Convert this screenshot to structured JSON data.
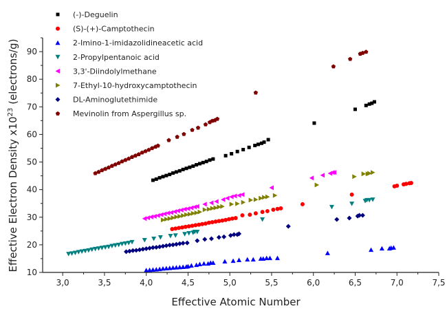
{
  "chart_data": {
    "type": "scatter",
    "title": "",
    "xlabel": "Effective Atomic Number",
    "ylabel": {
      "main": "Effective Electron Density x10",
      "sup": "23",
      "unit": " (electrons/g)"
    },
    "xlim": [
      2.76,
      7.5
    ],
    "ylim": [
      10,
      95
    ],
    "xticks": [
      3.0,
      3.5,
      4.0,
      4.5,
      5.0,
      5.5,
      6.0,
      6.5,
      7.0,
      7.5
    ],
    "xtick_labels": [
      "3,0",
      "3,5",
      "4,0",
      "4,5",
      "5,0",
      "5,5",
      "6,0",
      "6,5",
      "7,0",
      "7,5"
    ],
    "yticks": [
      10,
      20,
      30,
      40,
      50,
      60,
      70,
      80,
      90
    ],
    "ytick_labels": [
      "10",
      "20",
      "30",
      "40",
      "50",
      "60",
      "70",
      "80",
      "90"
    ],
    "grid": false,
    "legend_position": "top-left",
    "series": [
      {
        "name": "(-)-Deguelin",
        "marker": "square",
        "color": "#000000",
        "points": [
          [
            4.08,
            43.4
          ],
          [
            4.12,
            43.8
          ],
          [
            4.16,
            44.3
          ],
          [
            4.2,
            44.7
          ],
          [
            4.24,
            45.1
          ],
          [
            4.28,
            45.5
          ],
          [
            4.32,
            46.0
          ],
          [
            4.36,
            46.4
          ],
          [
            4.4,
            46.8
          ],
          [
            4.44,
            47.3
          ],
          [
            4.48,
            47.7
          ],
          [
            4.52,
            48.1
          ],
          [
            4.56,
            48.5
          ],
          [
            4.6,
            49.0
          ],
          [
            4.64,
            49.4
          ],
          [
            4.68,
            49.8
          ],
          [
            4.72,
            50.2
          ],
          [
            4.76,
            50.7
          ],
          [
            4.8,
            51.1
          ],
          [
            4.95,
            52.3
          ],
          [
            5.02,
            53.0
          ],
          [
            5.09,
            53.8
          ],
          [
            5.16,
            54.5
          ],
          [
            5.23,
            55.3
          ],
          [
            5.3,
            56.0
          ],
          [
            5.34,
            56.4
          ],
          [
            5.38,
            56.8
          ],
          [
            5.41,
            57.2
          ],
          [
            5.46,
            58.1
          ],
          [
            6.01,
            64.1
          ],
          [
            6.5,
            69.1
          ],
          [
            6.63,
            70.5
          ],
          [
            6.67,
            71.0
          ],
          [
            6.7,
            71.3
          ],
          [
            6.73,
            71.8
          ]
        ]
      },
      {
        "name": "(S)-(+)-Camptothecin",
        "marker": "circle",
        "color": "#ff0000",
        "points": [
          [
            4.31,
            25.7
          ],
          [
            4.35,
            25.9
          ],
          [
            4.39,
            26.1
          ],
          [
            4.43,
            26.3
          ],
          [
            4.47,
            26.5
          ],
          [
            4.51,
            26.7
          ],
          [
            4.55,
            26.9
          ],
          [
            4.59,
            27.1
          ],
          [
            4.63,
            27.3
          ],
          [
            4.67,
            27.5
          ],
          [
            4.71,
            27.7
          ],
          [
            4.75,
            28.0
          ],
          [
            4.79,
            28.2
          ],
          [
            4.83,
            28.4
          ],
          [
            4.87,
            28.6
          ],
          [
            4.91,
            28.8
          ],
          [
            4.95,
            29.0
          ],
          [
            4.99,
            29.3
          ],
          [
            5.03,
            29.5
          ],
          [
            5.07,
            29.7
          ],
          [
            5.15,
            30.7
          ],
          [
            5.24,
            30.9
          ],
          [
            5.31,
            31.4
          ],
          [
            5.39,
            31.9
          ],
          [
            5.45,
            32.2
          ],
          [
            5.52,
            32.7
          ],
          [
            5.57,
            33.0
          ],
          [
            5.61,
            33.2
          ],
          [
            5.87,
            34.7
          ],
          [
            6.46,
            38.2
          ],
          [
            6.97,
            41.2
          ],
          [
            7.0,
            41.4
          ],
          [
            7.08,
            41.9
          ],
          [
            7.11,
            42.1
          ],
          [
            7.15,
            42.3
          ],
          [
            7.17,
            42.4
          ]
        ]
      },
      {
        "name": "2-Imino-1-imidazolidineacetic acid",
        "marker": "triangle-up",
        "color": "#0000ff",
        "points": [
          [
            4.0,
            10.8
          ],
          [
            4.04,
            10.9
          ],
          [
            4.08,
            11.0
          ],
          [
            4.12,
            11.1
          ],
          [
            4.16,
            11.2
          ],
          [
            4.2,
            11.4
          ],
          [
            4.24,
            11.5
          ],
          [
            4.28,
            11.6
          ],
          [
            4.32,
            11.7
          ],
          [
            4.36,
            11.8
          ],
          [
            4.4,
            11.9
          ],
          [
            4.44,
            12.0
          ],
          [
            4.48,
            12.1
          ],
          [
            4.5,
            12.2
          ],
          [
            4.54,
            12.5
          ],
          [
            4.6,
            12.7
          ],
          [
            4.64,
            13.0
          ],
          [
            4.69,
            13.2
          ],
          [
            4.74,
            13.2
          ],
          [
            4.77,
            13.5
          ],
          [
            4.8,
            13.5
          ],
          [
            4.94,
            14.0
          ],
          [
            5.04,
            14.2
          ],
          [
            5.11,
            14.5
          ],
          [
            5.21,
            14.7
          ],
          [
            5.28,
            14.7
          ],
          [
            5.37,
            15.0
          ],
          [
            5.4,
            15.0
          ],
          [
            5.44,
            15.2
          ],
          [
            5.48,
            15.2
          ],
          [
            5.57,
            15.2
          ],
          [
            6.17,
            17.0
          ],
          [
            6.69,
            18.2
          ],
          [
            6.82,
            18.7
          ],
          [
            6.91,
            18.7
          ],
          [
            6.93,
            18.9
          ],
          [
            6.96,
            19.0
          ]
        ]
      },
      {
        "name": "2-Propylpentanoic acid",
        "marker": "triangle-down",
        "color": "#008080",
        "points": [
          [
            3.07,
            16.7
          ],
          [
            3.11,
            16.9
          ],
          [
            3.15,
            17.1
          ],
          [
            3.19,
            17.4
          ],
          [
            3.23,
            17.6
          ],
          [
            3.27,
            17.8
          ],
          [
            3.31,
            18.0
          ],
          [
            3.35,
            18.3
          ],
          [
            3.39,
            18.5
          ],
          [
            3.43,
            18.7
          ],
          [
            3.47,
            18.9
          ],
          [
            3.51,
            19.1
          ],
          [
            3.55,
            19.3
          ],
          [
            3.59,
            19.6
          ],
          [
            3.63,
            19.8
          ],
          [
            3.67,
            20.0
          ],
          [
            3.71,
            20.3
          ],
          [
            3.75,
            20.5
          ],
          [
            3.79,
            20.7
          ],
          [
            3.83,
            21.0
          ],
          [
            3.98,
            21.7
          ],
          [
            4.09,
            22.2
          ],
          [
            4.17,
            22.7
          ],
          [
            4.29,
            23.2
          ],
          [
            4.35,
            23.4
          ],
          [
            4.46,
            23.9
          ],
          [
            4.51,
            24.2
          ],
          [
            4.56,
            24.4
          ],
          [
            4.58,
            24.7
          ],
          [
            4.61,
            24.7
          ],
          [
            5.39,
            29.2
          ],
          [
            6.22,
            33.7
          ],
          [
            6.46,
            34.9
          ],
          [
            6.62,
            35.9
          ],
          [
            6.64,
            36.2
          ],
          [
            6.67,
            36.2
          ],
          [
            6.71,
            36.4
          ]
        ]
      },
      {
        "name": "3,3'-Diindolylmethane",
        "marker": "triangle-left",
        "color": "#ff00ff",
        "points": [
          [
            3.98,
            29.5
          ],
          [
            4.02,
            29.8
          ],
          [
            4.06,
            30.1
          ],
          [
            4.1,
            30.3
          ],
          [
            4.14,
            30.6
          ],
          [
            4.18,
            30.9
          ],
          [
            4.22,
            31.2
          ],
          [
            4.26,
            31.5
          ],
          [
            4.3,
            31.7
          ],
          [
            4.34,
            32.0
          ],
          [
            4.38,
            32.3
          ],
          [
            4.42,
            32.6
          ],
          [
            4.46,
            32.9
          ],
          [
            4.5,
            33.1
          ],
          [
            4.54,
            33.4
          ],
          [
            4.58,
            33.7
          ],
          [
            4.61,
            33.9
          ],
          [
            4.7,
            34.7
          ],
          [
            4.78,
            35.2
          ],
          [
            4.84,
            35.7
          ],
          [
            4.92,
            36.4
          ],
          [
            4.97,
            36.9
          ],
          [
            5.02,
            37.4
          ],
          [
            5.06,
            37.7
          ],
          [
            5.11,
            37.9
          ],
          [
            5.15,
            38.2
          ],
          [
            5.5,
            40.7
          ],
          [
            5.98,
            44.2
          ],
          [
            6.11,
            45.2
          ],
          [
            6.2,
            45.9
          ],
          [
            6.23,
            46.2
          ],
          [
            6.25,
            46.2
          ]
        ]
      },
      {
        "name": "7-Ethyl-10-hydroxycamptothecin",
        "marker": "triangle-right",
        "color": "#808000",
        "points": [
          [
            4.2,
            29.0
          ],
          [
            4.24,
            29.3
          ],
          [
            4.28,
            29.5
          ],
          [
            4.32,
            29.8
          ],
          [
            4.36,
            30.1
          ],
          [
            4.4,
            30.3
          ],
          [
            4.44,
            30.6
          ],
          [
            4.48,
            30.9
          ],
          [
            4.52,
            31.1
          ],
          [
            4.56,
            31.4
          ],
          [
            4.6,
            31.6
          ],
          [
            4.64,
            31.9
          ],
          [
            4.7,
            32.7
          ],
          [
            4.75,
            32.9
          ],
          [
            4.79,
            33.2
          ],
          [
            4.83,
            33.4
          ],
          [
            4.87,
            33.7
          ],
          [
            4.91,
            33.9
          ],
          [
            5.02,
            34.7
          ],
          [
            5.09,
            34.9
          ],
          [
            5.16,
            35.4
          ],
          [
            5.25,
            36.2
          ],
          [
            5.31,
            36.4
          ],
          [
            5.37,
            36.9
          ],
          [
            5.41,
            37.2
          ],
          [
            5.45,
            37.4
          ],
          [
            5.54,
            37.9
          ],
          [
            6.04,
            41.7
          ],
          [
            6.49,
            44.7
          ],
          [
            6.6,
            45.7
          ],
          [
            6.65,
            45.7
          ],
          [
            6.67,
            45.9
          ],
          [
            6.71,
            46.2
          ]
        ]
      },
      {
        "name": "DL-Aminoglutethimide",
        "marker": "diamond",
        "color": "#000080",
        "points": [
          [
            3.76,
            17.5
          ],
          [
            3.8,
            17.7
          ],
          [
            3.84,
            17.9
          ],
          [
            3.88,
            18.0
          ],
          [
            3.92,
            18.2
          ],
          [
            3.96,
            18.4
          ],
          [
            4.0,
            18.6
          ],
          [
            4.04,
            18.8
          ],
          [
            4.08,
            19.0
          ],
          [
            4.12,
            19.1
          ],
          [
            4.16,
            19.3
          ],
          [
            4.2,
            19.5
          ],
          [
            4.24,
            19.7
          ],
          [
            4.28,
            19.9
          ],
          [
            4.32,
            20.0
          ],
          [
            4.36,
            20.2
          ],
          [
            4.4,
            20.4
          ],
          [
            4.44,
            20.6
          ],
          [
            4.49,
            20.7
          ],
          [
            4.61,
            21.5
          ],
          [
            4.7,
            22.0
          ],
          [
            4.78,
            22.2
          ],
          [
            4.87,
            22.7
          ],
          [
            4.93,
            22.9
          ],
          [
            5.01,
            23.4
          ],
          [
            5.05,
            23.7
          ],
          [
            5.09,
            23.7
          ],
          [
            5.11,
            24.0
          ],
          [
            5.7,
            26.7
          ],
          [
            6.28,
            29.2
          ],
          [
            6.43,
            29.7
          ],
          [
            6.53,
            30.4
          ],
          [
            6.55,
            30.7
          ],
          [
            6.59,
            30.7
          ]
        ]
      },
      {
        "name": "Mevinolin from Aspergillus sp.",
        "marker": "pentagon",
        "color": "#800000",
        "points": [
          [
            3.39,
            45.9
          ],
          [
            3.43,
            46.4
          ],
          [
            3.47,
            47.0
          ],
          [
            3.51,
            47.5
          ],
          [
            3.55,
            48.0
          ],
          [
            3.59,
            48.6
          ],
          [
            3.63,
            49.1
          ],
          [
            3.67,
            49.6
          ],
          [
            3.71,
            50.2
          ],
          [
            3.75,
            50.7
          ],
          [
            3.79,
            51.2
          ],
          [
            3.83,
            51.8
          ],
          [
            3.87,
            52.3
          ],
          [
            3.91,
            52.8
          ],
          [
            3.95,
            53.4
          ],
          [
            3.99,
            53.9
          ],
          [
            4.03,
            54.4
          ],
          [
            4.07,
            55.0
          ],
          [
            4.11,
            55.5
          ],
          [
            4.14,
            55.9
          ],
          [
            4.27,
            57.9
          ],
          [
            4.37,
            59.1
          ],
          [
            4.45,
            60.1
          ],
          [
            4.55,
            61.6
          ],
          [
            4.62,
            62.4
          ],
          [
            4.71,
            63.6
          ],
          [
            4.76,
            64.4
          ],
          [
            4.79,
            64.9
          ],
          [
            4.82,
            65.1
          ],
          [
            4.85,
            65.6
          ],
          [
            5.31,
            75.1
          ],
          [
            6.24,
            84.6
          ],
          [
            6.44,
            87.3
          ],
          [
            6.56,
            89.2
          ],
          [
            6.59,
            89.5
          ],
          [
            6.63,
            89.9
          ]
        ]
      }
    ]
  }
}
